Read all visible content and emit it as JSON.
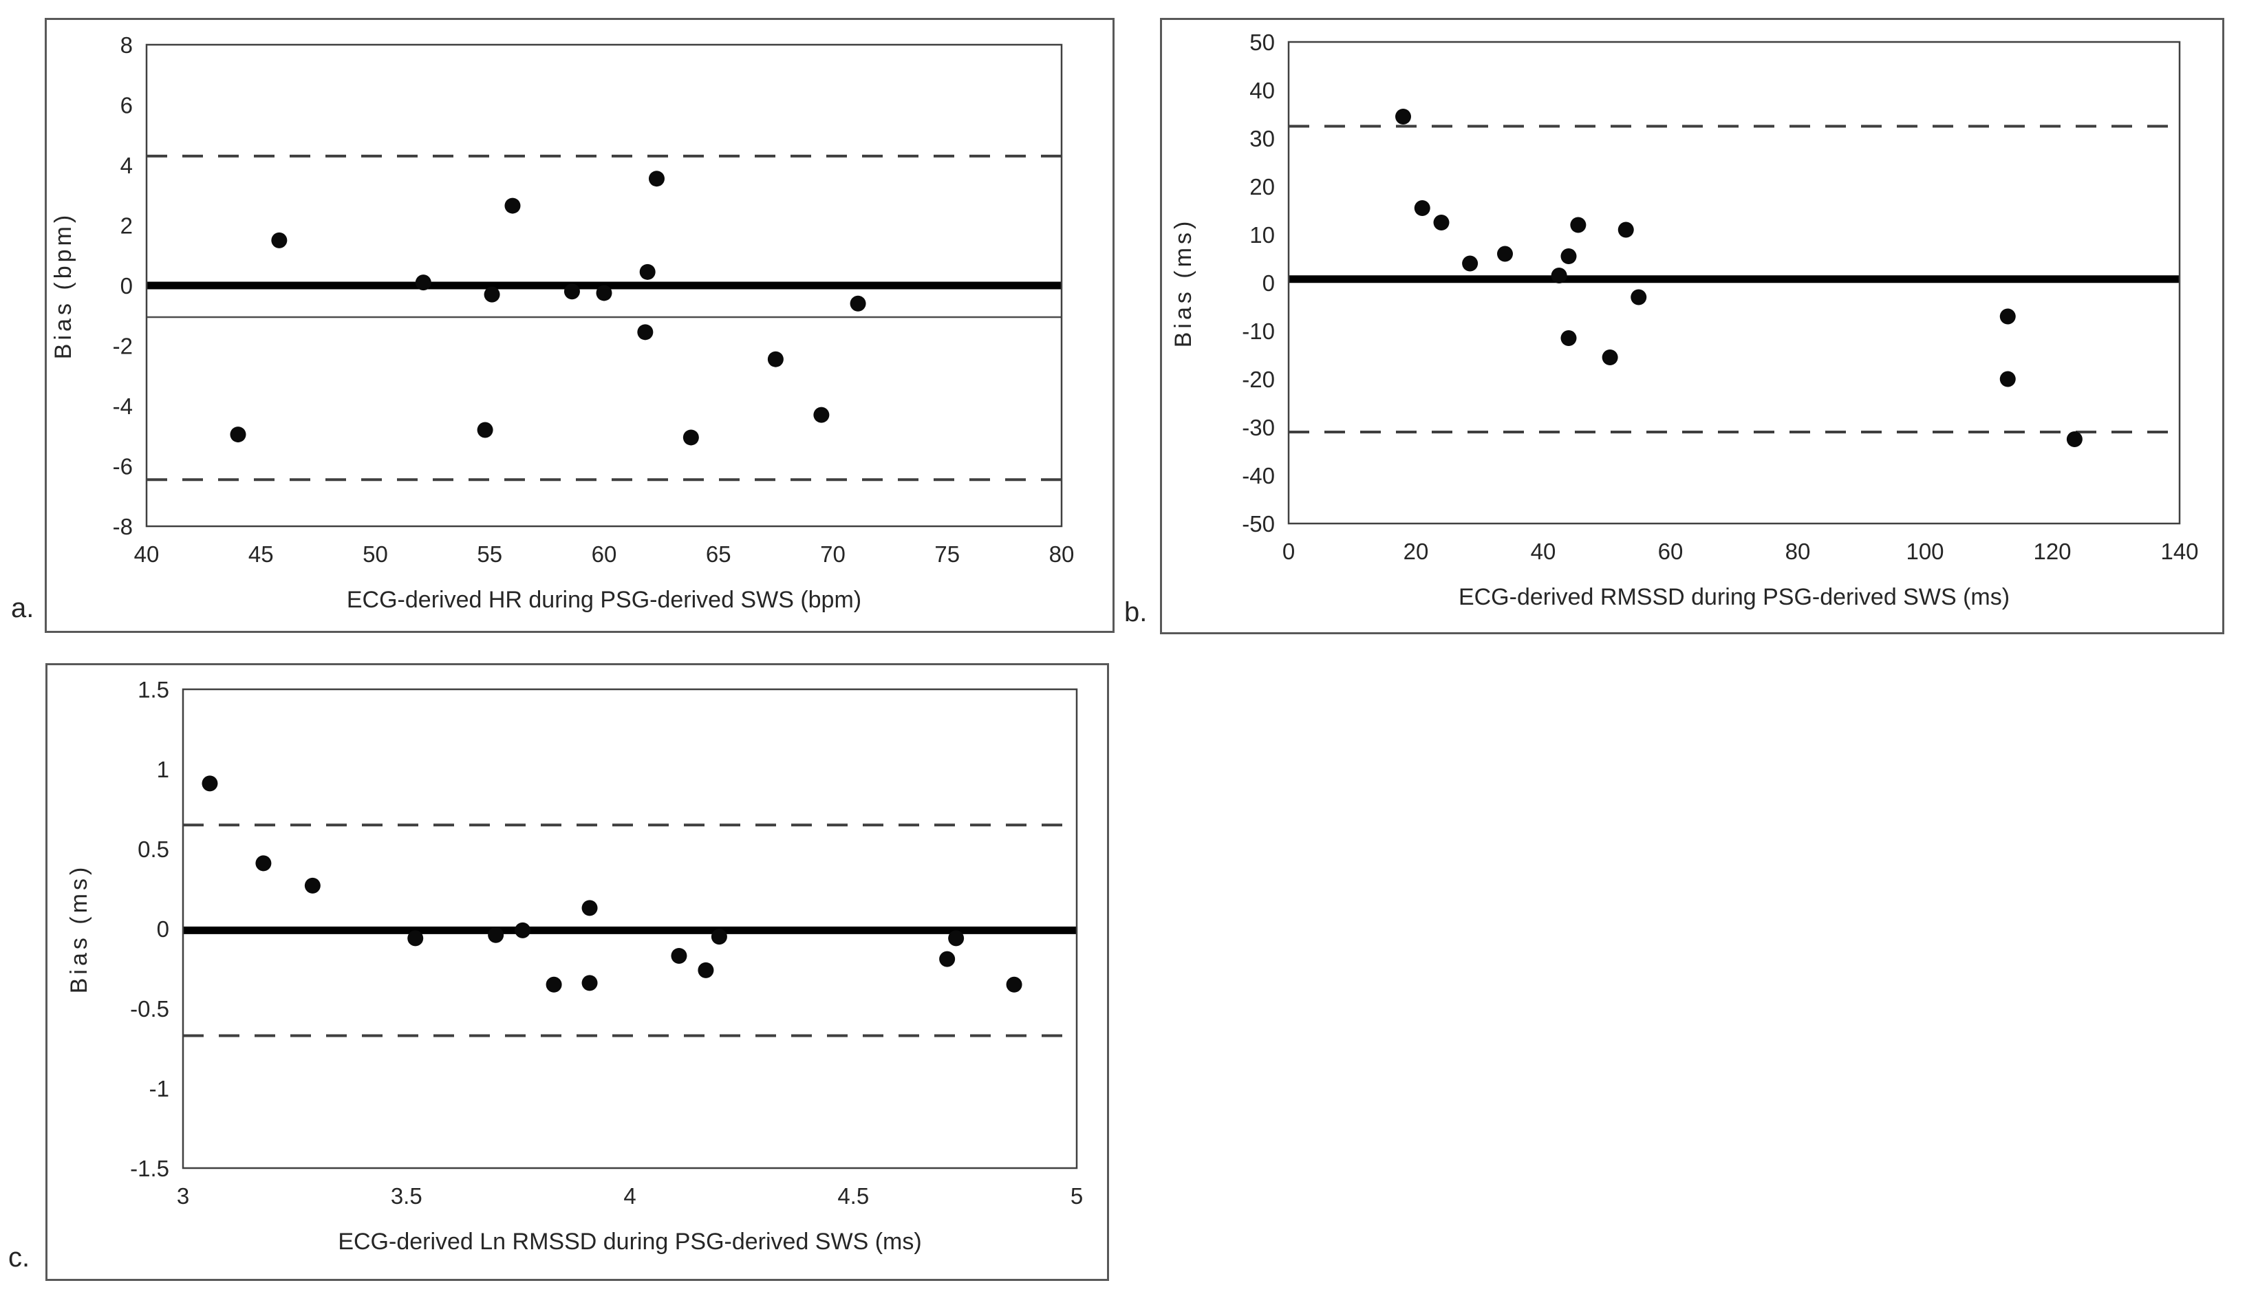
{
  "page": {
    "background_color": "#ffffff",
    "panel_border_color": "#595959",
    "text_color": "#262626",
    "point_color": "#0a0a0a",
    "line_color": "#000000",
    "dashed_line_color": "#3f3f3f"
  },
  "chart_data": [
    {
      "id": "a",
      "type": "scatter",
      "panel_label": "a.",
      "xlabel": "ECG-derived HR during PSG-derived SWS (bpm)",
      "ylabel": "Bias (bpm)",
      "xlim": [
        40,
        80
      ],
      "ylim": [
        -8,
        8
      ],
      "xticks": [
        "40",
        "45",
        "50",
        "55",
        "60",
        "65",
        "70",
        "75",
        "80"
      ],
      "yticks": [
        "8",
        "6",
        "4",
        "2",
        "0",
        "-2",
        "-4",
        "-6",
        "-8"
      ],
      "grid": false,
      "legend": "none",
      "lines": [
        {
          "role": "zero-line",
          "y": 0,
          "style": "solid",
          "weight": "thick"
        },
        {
          "role": "mean-bias-line",
          "y": -1.05,
          "style": "solid",
          "weight": "thin"
        },
        {
          "role": "upper-loa-line",
          "y": 4.3,
          "style": "dashed",
          "weight": "thin"
        },
        {
          "role": "lower-loa-line",
          "y": -6.45,
          "style": "dashed",
          "weight": "thin"
        }
      ],
      "points": [
        [
          44.0,
          -4.95
        ],
        [
          45.8,
          1.5
        ],
        [
          52.1,
          0.1
        ],
        [
          54.8,
          -4.8
        ],
        [
          55.1,
          -0.3
        ],
        [
          56.0,
          2.65
        ],
        [
          58.6,
          -0.2
        ],
        [
          60.0,
          -0.25
        ],
        [
          61.8,
          -1.55
        ],
        [
          61.9,
          0.45
        ],
        [
          62.3,
          3.55
        ],
        [
          63.8,
          -5.05
        ],
        [
          67.5,
          -2.45
        ],
        [
          69.5,
          -4.3
        ],
        [
          71.1,
          -0.6
        ]
      ]
    },
    {
      "id": "b",
      "type": "scatter",
      "panel_label": "b.",
      "xlabel": "ECG-derived RMSSD during PSG-derived SWS (ms)",
      "ylabel": "Bias (ms)",
      "xlim": [
        0,
        140
      ],
      "ylim": [
        -50,
        50
      ],
      "xticks": [
        "0",
        "20",
        "40",
        "60",
        "80",
        "100",
        "120",
        "140"
      ],
      "yticks": [
        "50",
        "40",
        "30",
        "20",
        "10",
        "0",
        "-10",
        "-20",
        "-30",
        "-40",
        "-50"
      ],
      "grid": false,
      "legend": "none",
      "lines": [
        {
          "role": "mean-bias-line",
          "y": 0.75,
          "style": "solid",
          "weight": "thick"
        },
        {
          "role": "upper-loa-line",
          "y": 32.5,
          "style": "dashed",
          "weight": "thin"
        },
        {
          "role": "lower-loa-line",
          "y": -31.0,
          "style": "dashed",
          "weight": "thin"
        }
      ],
      "points": [
        [
          18.0,
          34.5
        ],
        [
          21.0,
          15.5
        ],
        [
          24.0,
          12.5
        ],
        [
          28.5,
          4.0
        ],
        [
          34.0,
          6.0
        ],
        [
          42.5,
          1.5
        ],
        [
          44.0,
          5.5
        ],
        [
          45.5,
          12.0
        ],
        [
          53.0,
          11.0
        ],
        [
          55.0,
          -3.0
        ],
        [
          44.0,
          -11.5
        ],
        [
          50.5,
          -15.5
        ],
        [
          113.0,
          -7.0
        ],
        [
          113.0,
          -20.0
        ],
        [
          123.5,
          -32.5
        ]
      ]
    },
    {
      "id": "c",
      "type": "scatter",
      "panel_label": "c.",
      "xlabel": "ECG-derived Ln RMSSD during PSG-derived SWS (ms)",
      "ylabel": "Bias (ms)",
      "xlim": [
        3,
        5
      ],
      "ylim": [
        -1.5,
        1.5
      ],
      "xticks": [
        "3",
        "3.5",
        "4",
        "4.5",
        "5"
      ],
      "yticks": [
        "1.5",
        "1",
        "0.5",
        "0",
        "-0.5",
        "-1",
        "-1.5"
      ],
      "grid": false,
      "legend": "none",
      "lines": [
        {
          "role": "zero-mean-line",
          "y": -0.01,
          "style": "solid",
          "weight": "thick"
        },
        {
          "role": "upper-loa-line",
          "y": 0.65,
          "style": "dashed",
          "weight": "thin"
        },
        {
          "role": "lower-loa-line",
          "y": -0.67,
          "style": "dashed",
          "weight": "thin"
        }
      ],
      "points": [
        [
          3.06,
          0.91
        ],
        [
          3.18,
          0.41
        ],
        [
          3.29,
          0.27
        ],
        [
          3.52,
          -0.06
        ],
        [
          3.7,
          -0.04
        ],
        [
          3.76,
          -0.01
        ],
        [
          3.83,
          -0.35
        ],
        [
          3.91,
          0.13
        ],
        [
          3.91,
          -0.34
        ],
        [
          4.11,
          -0.17
        ],
        [
          4.17,
          -0.26
        ],
        [
          4.2,
          -0.05
        ],
        [
          4.71,
          -0.19
        ],
        [
          4.73,
          -0.06
        ],
        [
          4.86,
          -0.35
        ]
      ]
    }
  ]
}
